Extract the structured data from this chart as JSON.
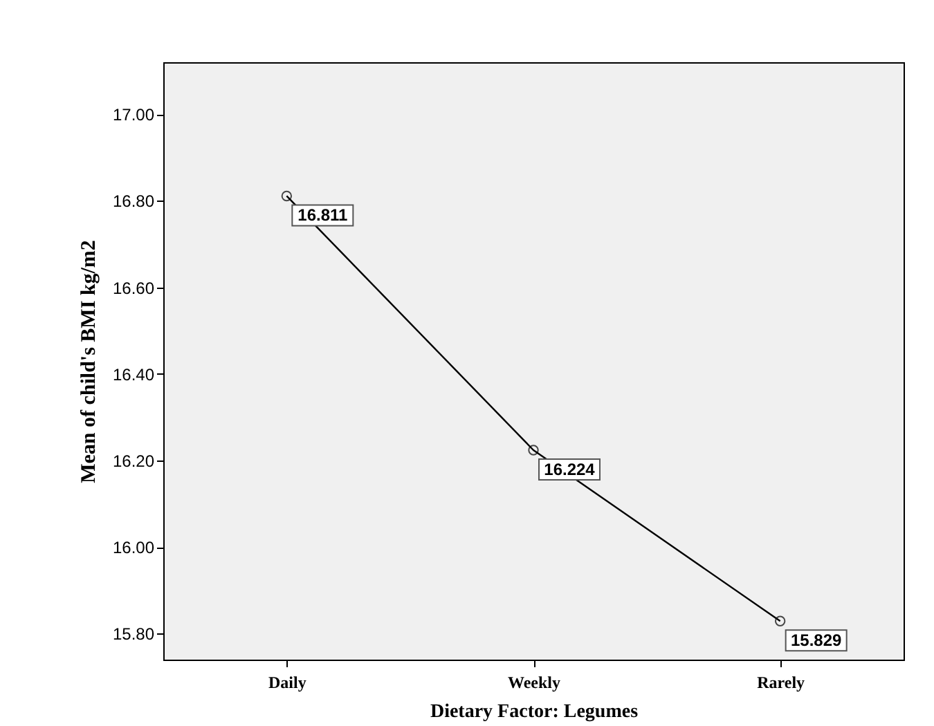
{
  "chart_data": {
    "type": "line",
    "xlabel": "Dietary Factor: Legumes",
    "ylabel": "Mean of child's BMI kg/m2",
    "categories": [
      "Daily",
      "Weekly",
      "Rarely"
    ],
    "values": [
      16.811,
      16.224,
      15.829
    ],
    "color": "#000000",
    "ylim": [
      15.74,
      17.12
    ],
    "yticks": [
      {
        "value": 15.8,
        "label": "15.80"
      },
      {
        "value": 16.0,
        "label": "16.00"
      },
      {
        "value": 16.2,
        "label": "16.20"
      },
      {
        "value": 16.4,
        "label": "16.40"
      },
      {
        "value": 16.6,
        "label": "16.60"
      },
      {
        "value": 16.8,
        "label": "16.80"
      },
      {
        "value": 17.0,
        "label": "17.00"
      }
    ],
    "grid": false,
    "marker": "circle",
    "line_style": "solid",
    "data_labels": true
  }
}
